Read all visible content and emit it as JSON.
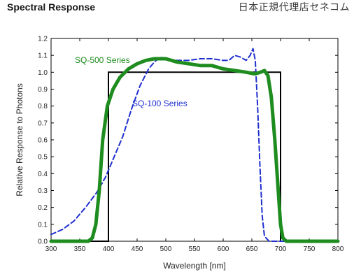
{
  "header": {
    "title": "Spectral Response",
    "vendor": "日本正規代理店セネコム"
  },
  "chart_data": {
    "type": "line",
    "xlabel": "Wavelength [nm]",
    "ylabel": "Relative Response to Photons",
    "xlim": [
      300,
      800
    ],
    "ylim": [
      0,
      1.2
    ],
    "xticks": [
      300,
      350,
      400,
      450,
      500,
      550,
      600,
      650,
      700,
      750,
      800
    ],
    "yticks": [
      "0.0",
      "0.1",
      "0.2",
      "0.3",
      "0.4",
      "0.5",
      "0.6",
      "0.7",
      "0.8",
      "0.9",
      "1.0",
      "1.1",
      "1.2"
    ],
    "grid": false,
    "series": [
      {
        "name": "SQ-500 Series",
        "color": "#1e8c1e",
        "style": "solid-thick",
        "points": [
          [
            300,
            0
          ],
          [
            365,
            0
          ],
          [
            372,
            0.02
          ],
          [
            378,
            0.1
          ],
          [
            384,
            0.3
          ],
          [
            390,
            0.6
          ],
          [
            398,
            0.8
          ],
          [
            408,
            0.9
          ],
          [
            420,
            0.97
          ],
          [
            435,
            1.02
          ],
          [
            450,
            1.05
          ],
          [
            465,
            1.07
          ],
          [
            480,
            1.08
          ],
          [
            500,
            1.08
          ],
          [
            520,
            1.06
          ],
          [
            540,
            1.05
          ],
          [
            560,
            1.04
          ],
          [
            580,
            1.04
          ],
          [
            600,
            1.02
          ],
          [
            620,
            1.01
          ],
          [
            640,
            1.0
          ],
          [
            655,
            0.99
          ],
          [
            665,
            1.0
          ],
          [
            672,
            1.01
          ],
          [
            678,
            0.98
          ],
          [
            684,
            0.85
          ],
          [
            690,
            0.6
          ],
          [
            696,
            0.3
          ],
          [
            700,
            0.1
          ],
          [
            704,
            0.02
          ],
          [
            710,
            0
          ],
          [
            800,
            0
          ]
        ]
      },
      {
        "name": "SQ-100 Series",
        "color": "#1f2fd0",
        "style": "dashed",
        "points": [
          [
            300,
            0.04
          ],
          [
            320,
            0.07
          ],
          [
            340,
            0.12
          ],
          [
            360,
            0.2
          ],
          [
            380,
            0.29
          ],
          [
            395,
            0.38
          ],
          [
            410,
            0.5
          ],
          [
            425,
            0.62
          ],
          [
            440,
            0.78
          ],
          [
            455,
            0.92
          ],
          [
            470,
            1.02
          ],
          [
            480,
            1.06
          ],
          [
            490,
            1.09
          ],
          [
            500,
            1.08
          ],
          [
            520,
            1.07
          ],
          [
            540,
            1.07
          ],
          [
            560,
            1.08
          ],
          [
            580,
            1.08
          ],
          [
            600,
            1.07
          ],
          [
            610,
            1.07
          ],
          [
            620,
            1.1
          ],
          [
            630,
            1.09
          ],
          [
            640,
            1.07
          ],
          [
            647,
            1.1
          ],
          [
            652,
            1.14
          ],
          [
            656,
            1.07
          ],
          [
            660,
            0.8
          ],
          [
            664,
            0.45
          ],
          [
            668,
            0.15
          ],
          [
            672,
            0.03
          ],
          [
            680,
            0
          ],
          [
            800,
            0
          ]
        ]
      },
      {
        "name": "",
        "color": "#000000",
        "style": "solid-thin",
        "points": [
          [
            300,
            0
          ],
          [
            400,
            0
          ],
          [
            400,
            1.0
          ],
          [
            700,
            1.0
          ],
          [
            700,
            0
          ],
          [
            800,
            0
          ]
        ]
      }
    ],
    "annotations": [
      "SQ-500 Series",
      "SQ-100 Series"
    ]
  }
}
